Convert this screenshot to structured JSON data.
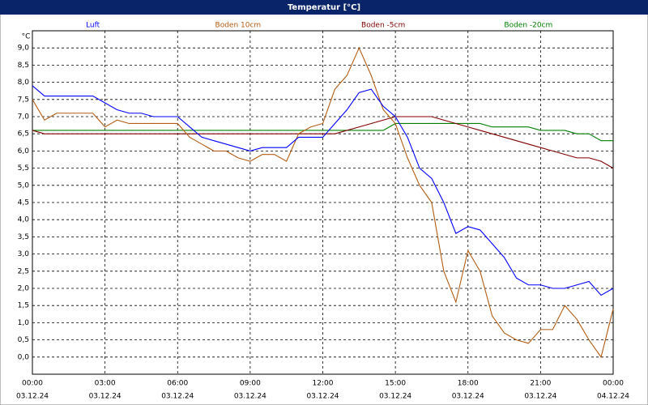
{
  "chart_data": {
    "type": "line",
    "title": "Temperatur [°C]",
    "y_unit": "°C",
    "x": [
      0,
      0.5,
      1,
      1.5,
      2,
      2.5,
      3,
      3.5,
      4,
      4.5,
      5,
      5.5,
      6,
      6.5,
      7,
      7.5,
      8,
      8.5,
      9,
      9.5,
      10,
      10.5,
      11,
      11.5,
      12,
      12.5,
      13,
      13.5,
      14,
      14.5,
      15,
      15.5,
      16,
      16.5,
      17,
      17.5,
      18,
      18.5,
      19,
      19.5,
      20,
      20.5,
      21,
      21.5,
      22,
      22.5,
      23,
      23.5,
      24
    ],
    "series": [
      {
        "name": "Luft",
        "color": "#0000ff",
        "values": [
          7.9,
          7.6,
          7.6,
          7.6,
          7.6,
          7.6,
          7.4,
          7.2,
          7.1,
          7.1,
          7.0,
          7.0,
          7.0,
          6.7,
          6.4,
          6.3,
          6.2,
          6.1,
          6.0,
          6.1,
          6.1,
          6.1,
          6.4,
          6.4,
          6.4,
          6.8,
          7.2,
          7.7,
          7.8,
          7.3,
          7.0,
          6.4,
          5.5,
          5.2,
          4.5,
          3.6,
          3.8,
          3.7,
          3.3,
          2.9,
          2.3,
          2.1,
          2.1,
          2.0,
          2.0,
          2.1,
          2.2,
          1.8,
          2.0
        ]
      },
      {
        "name": "Boden 10cm",
        "color": "#b35c14",
        "values": [
          7.5,
          6.9,
          7.1,
          7.1,
          7.1,
          7.1,
          6.7,
          6.9,
          6.8,
          6.8,
          6.8,
          6.8,
          6.8,
          6.4,
          6.2,
          6.0,
          6.0,
          5.8,
          5.7,
          5.9,
          5.9,
          5.7,
          6.5,
          6.7,
          6.8,
          7.8,
          8.2,
          9.0,
          8.2,
          7.2,
          6.8,
          5.8,
          5.0,
          4.5,
          2.5,
          1.6,
          3.1,
          2.5,
          1.2,
          0.7,
          0.5,
          0.4,
          0.8,
          0.8,
          1.5,
          1.1,
          0.5,
          0.0,
          1.4
        ]
      },
      {
        "name": "Boden -5cm",
        "color": "#800000",
        "values": [
          6.6,
          6.5,
          6.5,
          6.5,
          6.5,
          6.5,
          6.5,
          6.5,
          6.5,
          6.5,
          6.5,
          6.5,
          6.5,
          6.5,
          6.5,
          6.5,
          6.5,
          6.5,
          6.5,
          6.5,
          6.5,
          6.5,
          6.5,
          6.5,
          6.5,
          6.5,
          6.6,
          6.7,
          6.8,
          6.9,
          7.0,
          7.0,
          7.0,
          7.0,
          6.9,
          6.8,
          6.7,
          6.6,
          6.5,
          6.4,
          6.3,
          6.2,
          6.1,
          6.0,
          5.9,
          5.8,
          5.8,
          5.7,
          5.5
        ]
      },
      {
        "name": "Boden -20cm",
        "color": "#008000",
        "values": [
          6.6,
          6.6,
          6.6,
          6.6,
          6.6,
          6.6,
          6.6,
          6.6,
          6.6,
          6.6,
          6.6,
          6.6,
          6.6,
          6.6,
          6.6,
          6.6,
          6.6,
          6.6,
          6.6,
          6.6,
          6.6,
          6.6,
          6.6,
          6.6,
          6.6,
          6.6,
          6.6,
          6.6,
          6.6,
          6.6,
          6.8,
          6.8,
          6.8,
          6.8,
          6.8,
          6.8,
          6.8,
          6.8,
          6.7,
          6.7,
          6.7,
          6.7,
          6.6,
          6.6,
          6.6,
          6.5,
          6.5,
          6.3,
          6.3
        ]
      }
    ],
    "xlim": [
      0,
      24
    ],
    "xticks": [
      {
        "value": 0,
        "label": "00:00",
        "date": "03.12.24"
      },
      {
        "value": 3,
        "label": "03:00",
        "date": "03.12.24"
      },
      {
        "value": 6,
        "label": "06:00",
        "date": "03.12.24"
      },
      {
        "value": 9,
        "label": "09:00",
        "date": "03.12.24"
      },
      {
        "value": 12,
        "label": "12:00",
        "date": "03.12.24"
      },
      {
        "value": 15,
        "label": "15:00",
        "date": "03.12.24"
      },
      {
        "value": 18,
        "label": "18:00",
        "date": "03.12.24"
      },
      {
        "value": 21,
        "label": "21:00",
        "date": "03.12.24"
      },
      {
        "value": 24,
        "label": "00:00",
        "date": "04.12.24"
      }
    ],
    "ylim": [
      -0.5,
      9.5
    ],
    "yticks": [
      {
        "value": 0,
        "label": "0,0"
      },
      {
        "value": 0.5,
        "label": "0,5"
      },
      {
        "value": 1,
        "label": "1,0"
      },
      {
        "value": 1.5,
        "label": "1,5"
      },
      {
        "value": 2,
        "label": "2,0"
      },
      {
        "value": 2.5,
        "label": "2,5"
      },
      {
        "value": 3,
        "label": "3,0"
      },
      {
        "value": 3.5,
        "label": "3,5"
      },
      {
        "value": 4,
        "label": "4,0"
      },
      {
        "value": 4.5,
        "label": "4,5"
      },
      {
        "value": 5,
        "label": "5,0"
      },
      {
        "value": 5.5,
        "label": "5,5"
      },
      {
        "value": 6,
        "label": "6,0"
      },
      {
        "value": 6.5,
        "label": "6,5"
      },
      {
        "value": 7,
        "label": "7,0"
      },
      {
        "value": 7.5,
        "label": "7,5"
      },
      {
        "value": 8,
        "label": "8,0"
      },
      {
        "value": 8.5,
        "label": "8,5"
      },
      {
        "value": 9,
        "label": "9,0"
      }
    ],
    "grid": true
  }
}
